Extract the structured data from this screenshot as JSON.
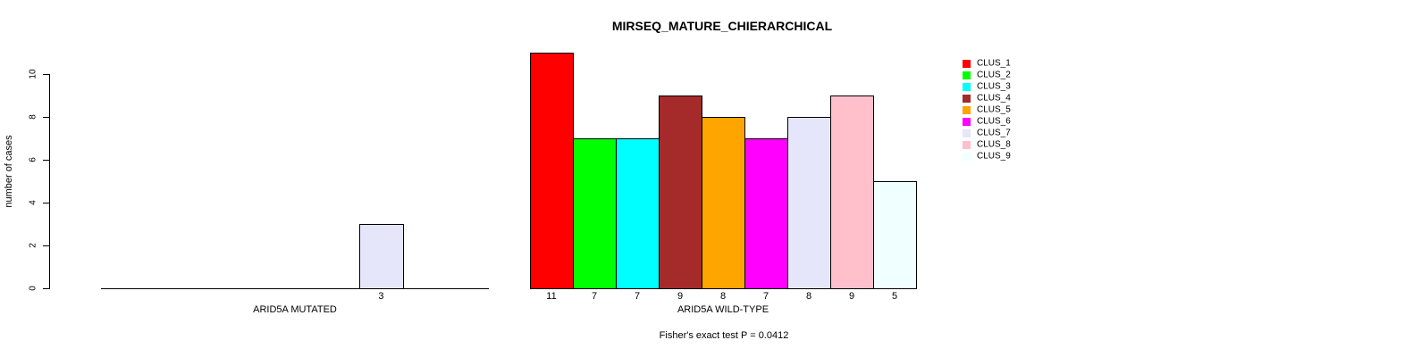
{
  "chart_data": {
    "type": "bar",
    "title": "MIRSEQ_MATURE_CHIERARCHICAL",
    "ylabel": "number of cases",
    "xlabel": "",
    "yticks": [
      0,
      2,
      4,
      6,
      8,
      10
    ],
    "ylim": [
      0,
      11
    ],
    "grid": false,
    "legend_position": "right",
    "clusters": [
      "CLUS_1",
      "CLUS_2",
      "CLUS_3",
      "CLUS_4",
      "CLUS_5",
      "CLUS_6",
      "CLUS_7",
      "CLUS_8",
      "CLUS_9"
    ],
    "palette": {
      "CLUS_1": "#FF0000",
      "CLUS_2": "#00FF00",
      "CLUS_3": "#00FFFF",
      "CLUS_4": "#A52A2A",
      "CLUS_5": "#FFA500",
      "CLUS_6": "#FF00FF",
      "CLUS_7": "#E6E6FA",
      "CLUS_8": "#FFC0CB",
      "CLUS_9": "#F0FFFF"
    },
    "groups": [
      {
        "label": "ARID5A MUTATED",
        "values": [
          0,
          0,
          0,
          0,
          0,
          0,
          3,
          0,
          0
        ]
      },
      {
        "label": "ARID5A WILD-TYPE",
        "values": [
          11,
          7,
          7,
          9,
          8,
          7,
          8,
          9,
          5
        ]
      }
    ],
    "bar_border_color": "#000000",
    "legend": {
      "entries": [
        {
          "label": "CLUS_1",
          "color": "#FF0000"
        },
        {
          "label": "CLUS_2",
          "color": "#00FF00"
        },
        {
          "label": "CLUS_3",
          "color": "#00FFFF"
        },
        {
          "label": "CLUS_4",
          "color": "#A52A2A"
        },
        {
          "label": "CLUS_5",
          "color": "#FFA500"
        },
        {
          "label": "CLUS_6",
          "color": "#FF00FF"
        },
        {
          "label": "CLUS_7",
          "color": "#E6E6FA"
        },
        {
          "label": "CLUS_8",
          "color": "#FFC0CB"
        },
        {
          "label": "CLUS_9",
          "color": "#F0FFFF"
        }
      ]
    },
    "footnote": "Fisher's exact test P = 0.0412"
  }
}
